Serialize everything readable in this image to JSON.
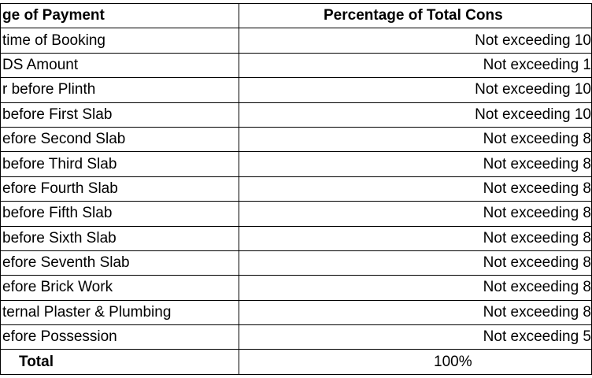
{
  "table": {
    "header": [
      "ge of Payment",
      "Percentage of Total Cons"
    ],
    "rows": [
      [
        "time of Booking",
        "Not exceeding 10"
      ],
      [
        "DS Amount",
        "Not exceeding 1"
      ],
      [
        "r before Plinth",
        "Not exceeding 10"
      ],
      [
        "before First Slab",
        "Not exceeding 10"
      ],
      [
        "efore Second Slab",
        "Not exceeding 8"
      ],
      [
        "before Third Slab",
        "Not exceeding 8"
      ],
      [
        "efore Fourth Slab",
        "Not exceeding 8"
      ],
      [
        "before Fifth Slab",
        "Not exceeding 8"
      ],
      [
        "before Sixth Slab",
        "Not exceeding 8"
      ],
      [
        "efore Seventh Slab",
        "Not exceeding 8"
      ],
      [
        "efore Brick Work",
        "Not exceeding 8"
      ],
      [
        "ternal Plaster & Plumbing",
        "Not exceeding 8"
      ],
      [
        "efore Possession",
        "Not exceeding 5"
      ]
    ],
    "total": [
      "Total",
      "100%"
    ]
  }
}
